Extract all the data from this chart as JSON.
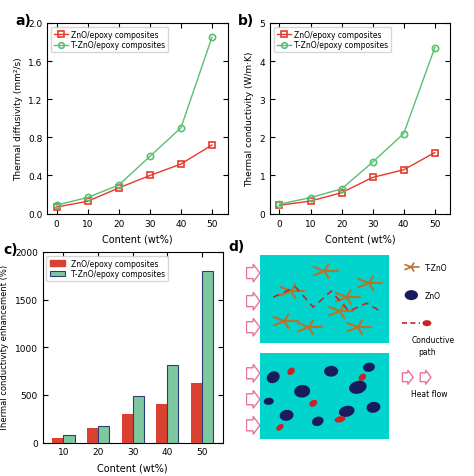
{
  "panel_a": {
    "label": "a)",
    "x": [
      0,
      10,
      20,
      30,
      40,
      50
    ],
    "zno": [
      0.07,
      0.13,
      0.27,
      0.4,
      0.52,
      0.72
    ],
    "tzno": [
      0.09,
      0.17,
      0.3,
      0.6,
      0.9,
      1.85
    ],
    "ylabel": "Thermal diffusivity (mm²/s)",
    "xlabel": "Content (wt%)",
    "ylim": [
      0,
      2.0
    ],
    "yticks": [
      0.0,
      0.4,
      0.8,
      1.2,
      1.6,
      2.0
    ],
    "xticks": [
      0,
      10,
      20,
      30,
      40,
      50
    ]
  },
  "panel_b": {
    "label": "b)",
    "x": [
      0,
      10,
      20,
      30,
      40,
      50
    ],
    "zno": [
      0.22,
      0.33,
      0.55,
      0.95,
      1.15,
      1.6
    ],
    "tzno": [
      0.25,
      0.42,
      0.65,
      1.35,
      2.1,
      4.35
    ],
    "ylabel": "Thermal conductivity (W/m·K)",
    "xlabel": "Content (wt%)",
    "ylim": [
      0,
      5
    ],
    "yticks": [
      0,
      1,
      2,
      3,
      4,
      5
    ],
    "xticks": [
      0,
      10,
      20,
      30,
      40,
      50
    ]
  },
  "panel_c": {
    "label": "c)",
    "x": [
      10,
      20,
      30,
      40,
      50
    ],
    "zno": [
      50,
      150,
      300,
      400,
      620
    ],
    "tzno": [
      75,
      170,
      490,
      810,
      1800
    ],
    "ylabel": "Thermal conductivity enhancement (%)",
    "xlabel": "Content (wt%)",
    "ylim": [
      0,
      2000
    ],
    "yticks": [
      0,
      500,
      1000,
      1500,
      2000
    ]
  },
  "zno_color": "#e8392a",
  "tzno_color": "#5bbf72",
  "zno_label": "ZnO/epoxy composites",
  "tzno_label": "T-ZnO/epoxy composites",
  "bar_zno_color": "#d94030",
  "bar_tzno_face": "#7ec8a0",
  "bar_tzno_edge": "#2c3e7a",
  "arrow_color": "#e8729a",
  "bg_color": "#00d4cc",
  "tzno_shape_color": "#b8732a",
  "zno_particle_color": "#1a1a5e",
  "red_particle_color": "#cc2222"
}
